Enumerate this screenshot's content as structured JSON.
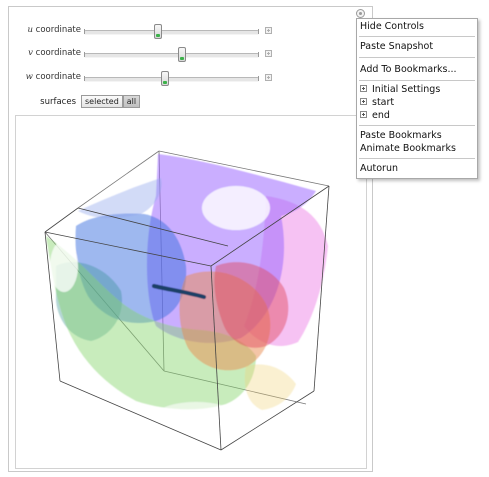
{
  "controls": [
    {
      "var": "u",
      "label": "coordinate",
      "fraction": 0.42
    },
    {
      "var": "v",
      "label": "coordinate",
      "fraction": 0.56
    },
    {
      "var": "w",
      "label": "coordinate",
      "fraction": 0.46
    }
  ],
  "surfaces": {
    "label": "surfaces",
    "options": [
      "selected",
      "all"
    ],
    "selected": "all"
  },
  "menu": {
    "items": [
      {
        "label": "Hide Controls"
      },
      {
        "label": "Paste Snapshot"
      },
      {
        "label": "Add To Bookmarks..."
      },
      {
        "label": "Initial Settings",
        "expandable": true
      },
      {
        "label": "start",
        "expandable": true
      },
      {
        "label": "end",
        "expandable": true
      },
      {
        "label": "Paste Bookmarks"
      },
      {
        "label": "Animate Bookmarks"
      },
      {
        "label": "Autorun"
      }
    ]
  },
  "colors": {
    "purple": "#9f6bff",
    "blue": "#3b6fe0",
    "magenta": "#e44fdc",
    "green": "#84d46c",
    "orange": "#e98b4f",
    "red": "#e0465a",
    "teal": "#2f8d8d",
    "box_edge": "#555555"
  }
}
